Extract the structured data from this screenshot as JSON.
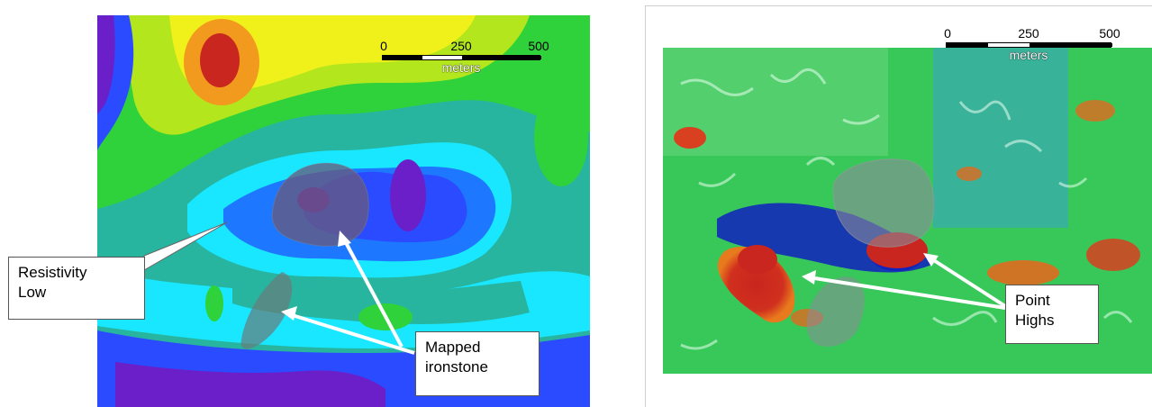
{
  "left_panel": {
    "scale": {
      "ticks": [
        "0",
        "250",
        "500"
      ],
      "unit": "meters"
    },
    "callouts": {
      "resistivity": [
        "Resistivity",
        "Low"
      ],
      "ironstone": [
        "Mapped",
        "ironstone"
      ]
    }
  },
  "right_panel": {
    "scale": {
      "ticks": [
        "0",
        "250",
        "500"
      ],
      "unit": "meters"
    },
    "callouts": {
      "point_highs": [
        "Point",
        "Highs"
      ]
    }
  },
  "colors": {
    "deep_purple": "#6a1fc8",
    "blue": "#2a4bff",
    "mid_blue": "#1e78ff",
    "cyan": "#19e6ff",
    "teal": "#27b5a0",
    "green": "#2fd23a",
    "yellow_green": "#b4e61e",
    "yellow": "#f0f01a",
    "orange": "#f29a1e",
    "red": "#c8261e",
    "ironstone_overlay": "#6a5a7a"
  }
}
